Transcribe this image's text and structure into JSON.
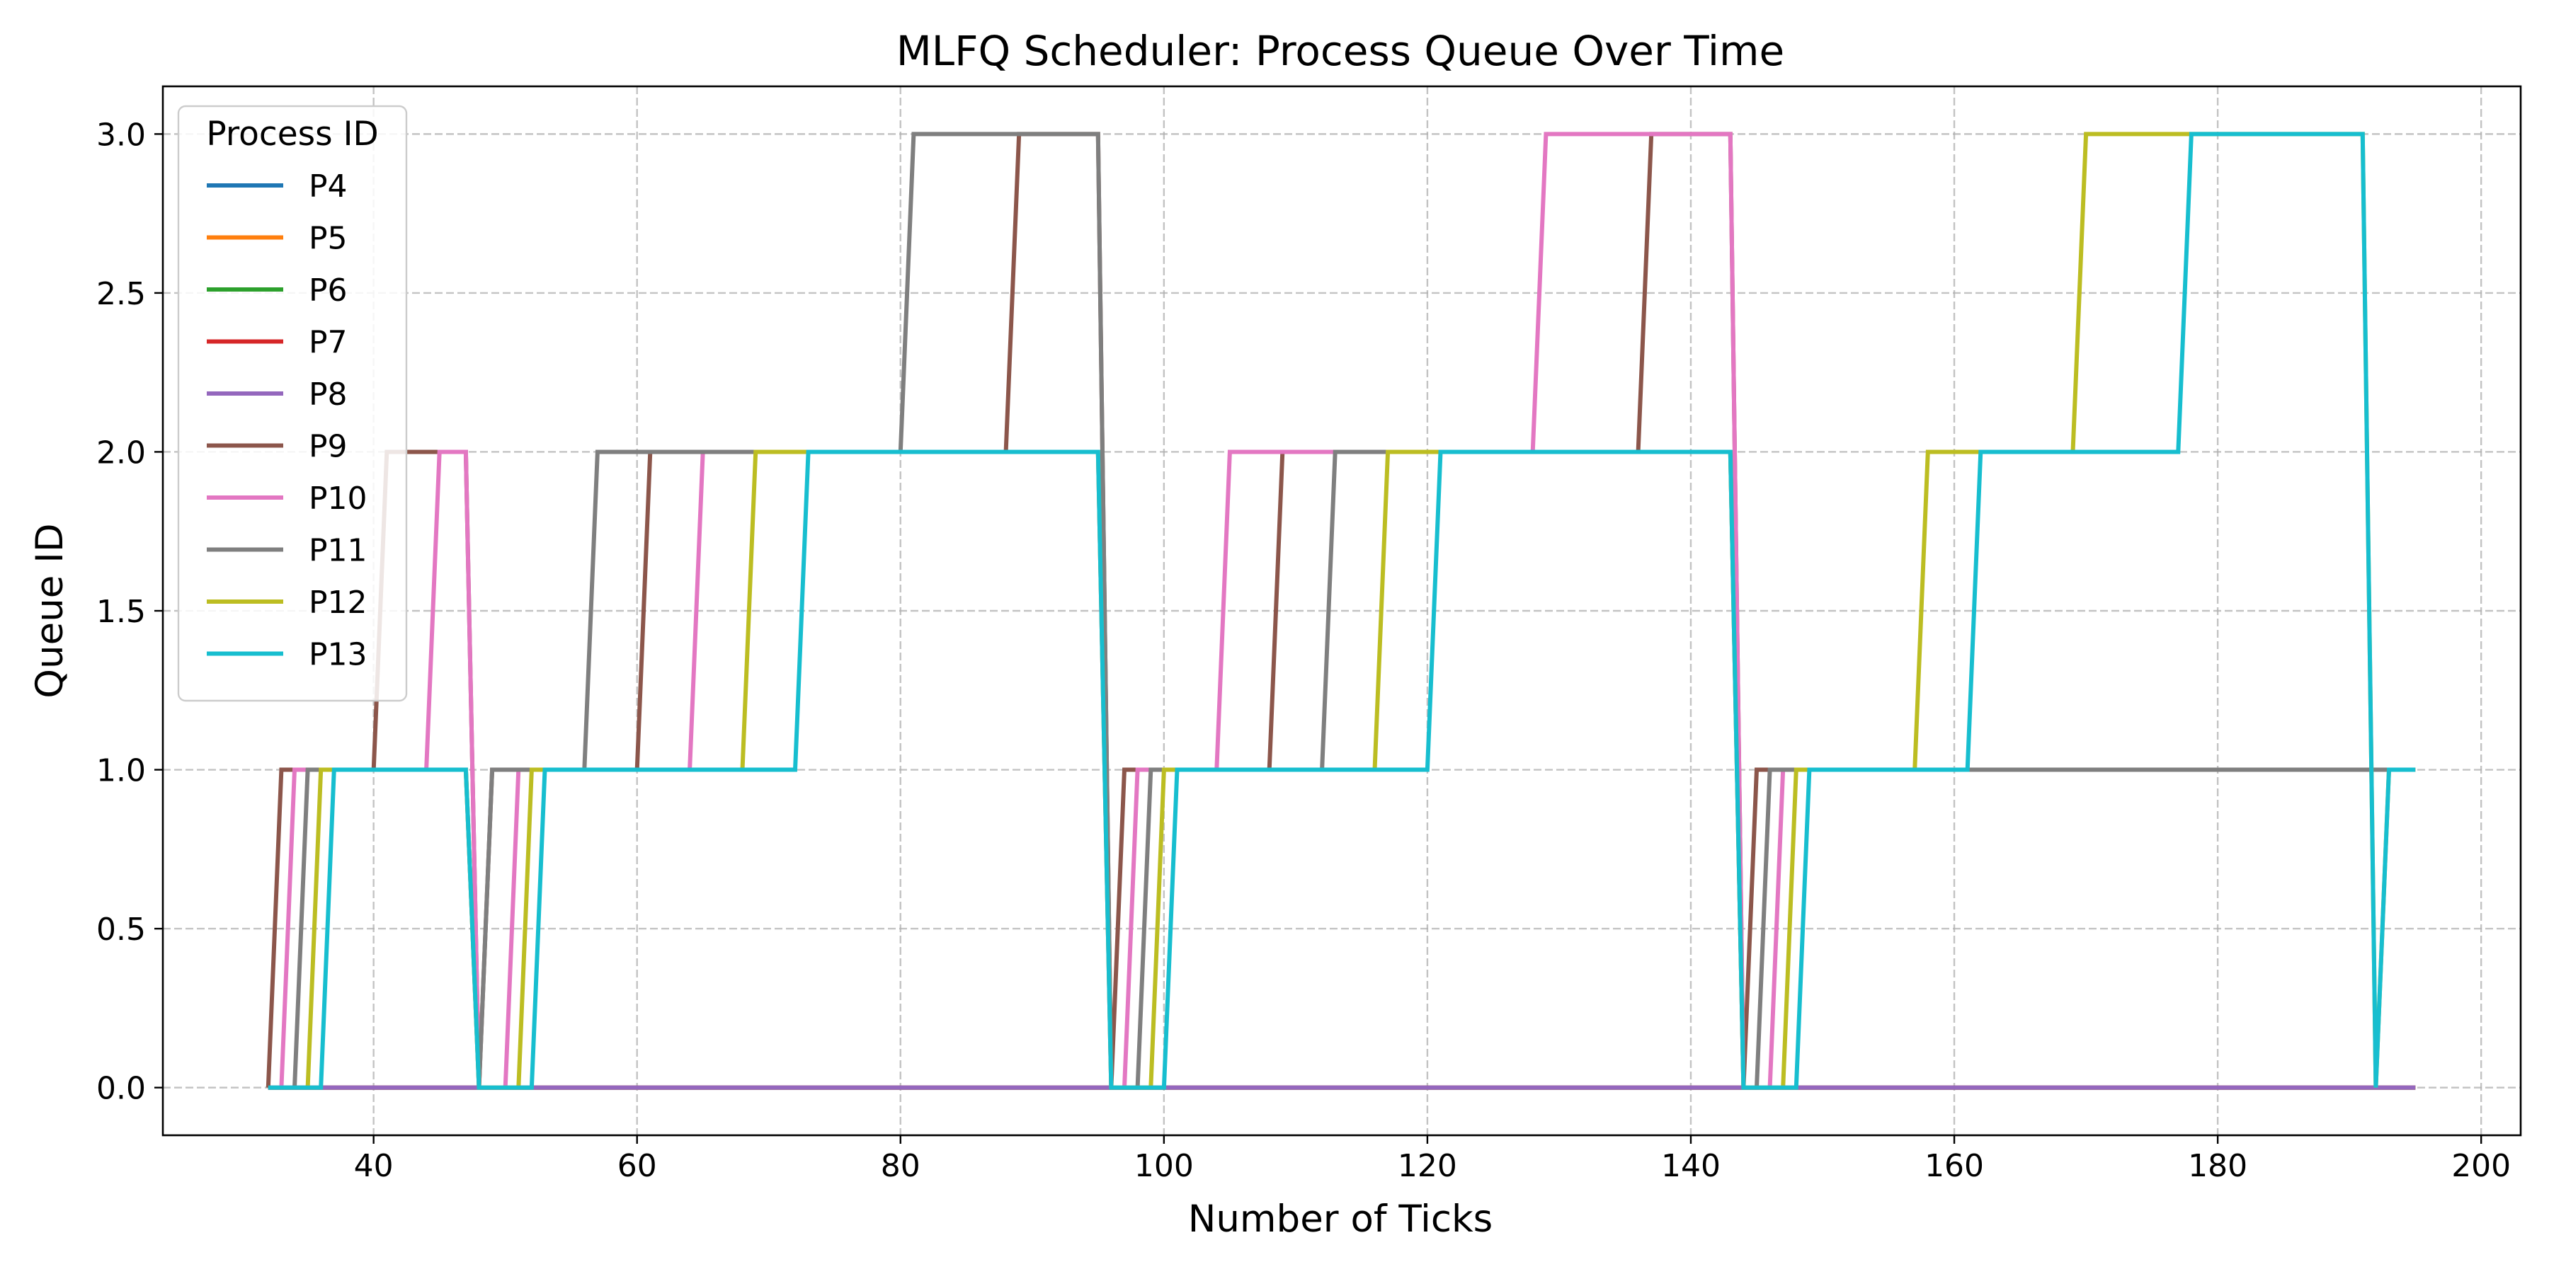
{
  "chart_data": {
    "type": "line",
    "title": "MLFQ Scheduler: Process Queue Over Time",
    "xlabel": "Number of Ticks",
    "ylabel": "Queue ID",
    "xlim": [
      24,
      203
    ],
    "ylim": [
      -0.15,
      3.15
    ],
    "xticks": [
      40,
      60,
      80,
      100,
      120,
      140,
      160,
      180,
      200
    ],
    "yticks": [
      0.0,
      0.5,
      1.0,
      1.5,
      2.0,
      2.5,
      3.0
    ],
    "xtick_labels": [
      "40",
      "60",
      "80",
      "100",
      "120",
      "140",
      "160",
      "180",
      "200"
    ],
    "ytick_labels": [
      "0.0",
      "0.5",
      "1.0",
      "1.5",
      "2.0",
      "2.5",
      "3.0"
    ],
    "grid": true,
    "legend": {
      "title": "Process ID",
      "position": "top-left"
    },
    "series": [
      {
        "name": "P4",
        "color": "#1f77b4",
        "points": [
          [
            32,
            0
          ],
          [
            195,
            0
          ]
        ]
      },
      {
        "name": "P5",
        "color": "#ff7f0e",
        "points": [
          [
            32,
            0
          ],
          [
            195,
            0
          ]
        ]
      },
      {
        "name": "P6",
        "color": "#2ca02c",
        "points": [
          [
            32,
            0
          ],
          [
            195,
            0
          ]
        ]
      },
      {
        "name": "P7",
        "color": "#d62728",
        "points": [
          [
            32,
            0
          ],
          [
            195,
            0
          ]
        ]
      },
      {
        "name": "P8",
        "color": "#9467bd",
        "points": [
          [
            32,
            0
          ],
          [
            195,
            0
          ]
        ]
      },
      {
        "name": "P9",
        "color": "#8c564b",
        "points": [
          [
            32,
            0
          ],
          [
            33,
            1
          ],
          [
            40,
            1
          ],
          [
            41,
            2
          ],
          [
            47,
            2
          ],
          [
            48,
            0
          ],
          [
            49,
            1
          ],
          [
            60,
            1
          ],
          [
            61,
            2
          ],
          [
            88,
            2
          ],
          [
            89,
            3
          ],
          [
            95,
            3
          ],
          [
            96,
            0
          ],
          [
            97,
            1
          ],
          [
            108,
            1
          ],
          [
            109,
            2
          ],
          [
            136,
            2
          ],
          [
            137,
            3
          ],
          [
            143,
            3
          ],
          [
            144,
            0
          ],
          [
            145,
            1
          ],
          [
            195,
            1
          ]
        ]
      },
      {
        "name": "P10",
        "color": "#e377c2",
        "points": [
          [
            33,
            0
          ],
          [
            34,
            1
          ],
          [
            44,
            1
          ],
          [
            45,
            2
          ],
          [
            47,
            2
          ],
          [
            48,
            0
          ],
          [
            50,
            0
          ],
          [
            51,
            1
          ],
          [
            64,
            1
          ],
          [
            65,
            2
          ],
          [
            95,
            2
          ],
          [
            96,
            0
          ],
          [
            97,
            0
          ],
          [
            98,
            1
          ],
          [
            104,
            1
          ],
          [
            105,
            2
          ],
          [
            128,
            2
          ],
          [
            129,
            3
          ],
          [
            143,
            3
          ],
          [
            144,
            0
          ],
          [
            146,
            0
          ],
          [
            147,
            1
          ],
          [
            195,
            1
          ]
        ]
      },
      {
        "name": "P11",
        "color": "#7f7f7f",
        "points": [
          [
            34,
            0
          ],
          [
            35,
            1
          ],
          [
            47,
            1
          ],
          [
            48,
            0
          ],
          [
            49,
            1
          ],
          [
            56,
            1
          ],
          [
            57,
            2
          ],
          [
            80,
            2
          ],
          [
            81,
            3
          ],
          [
            95,
            3
          ],
          [
            96,
            0
          ],
          [
            98,
            0
          ],
          [
            99,
            1
          ],
          [
            112,
            1
          ],
          [
            113,
            2
          ],
          [
            120,
            2
          ],
          [
            121,
            2
          ],
          [
            143,
            2
          ],
          [
            144,
            0
          ],
          [
            145,
            0
          ],
          [
            146,
            1
          ],
          [
            195,
            1
          ]
        ]
      },
      {
        "name": "P12",
        "color": "#bcbd22",
        "points": [
          [
            35,
            0
          ],
          [
            36,
            1
          ],
          [
            47,
            1
          ],
          [
            48,
            0
          ],
          [
            51,
            0
          ],
          [
            52,
            1
          ],
          [
            68,
            1
          ],
          [
            69,
            2
          ],
          [
            95,
            2
          ],
          [
            96,
            0
          ],
          [
            99,
            0
          ],
          [
            100,
            1
          ],
          [
            116,
            1
          ],
          [
            117,
            2
          ],
          [
            143,
            2
          ],
          [
            144,
            0
          ],
          [
            147,
            0
          ],
          [
            148,
            1
          ],
          [
            157,
            1
          ],
          [
            158,
            2
          ],
          [
            169,
            2
          ],
          [
            170,
            3
          ],
          [
            191,
            3
          ],
          [
            192,
            0
          ],
          [
            193,
            1
          ],
          [
            195,
            1
          ]
        ]
      },
      {
        "name": "P13",
        "color": "#17becf",
        "points": [
          [
            32,
            0
          ],
          [
            36,
            0
          ],
          [
            37,
            1
          ],
          [
            47,
            1
          ],
          [
            48,
            0
          ],
          [
            52,
            0
          ],
          [
            53,
            1
          ],
          [
            72,
            1
          ],
          [
            73,
            2
          ],
          [
            95,
            2
          ],
          [
            96,
            0
          ],
          [
            100,
            0
          ],
          [
            101,
            1
          ],
          [
            120,
            1
          ],
          [
            121,
            2
          ],
          [
            143,
            2
          ],
          [
            144,
            0
          ],
          [
            148,
            0
          ],
          [
            149,
            1
          ],
          [
            161,
            1
          ],
          [
            162,
            2
          ],
          [
            177,
            2
          ],
          [
            178,
            3
          ],
          [
            191,
            3
          ],
          [
            192,
            0
          ],
          [
            193,
            1
          ],
          [
            195,
            1
          ]
        ]
      }
    ]
  }
}
